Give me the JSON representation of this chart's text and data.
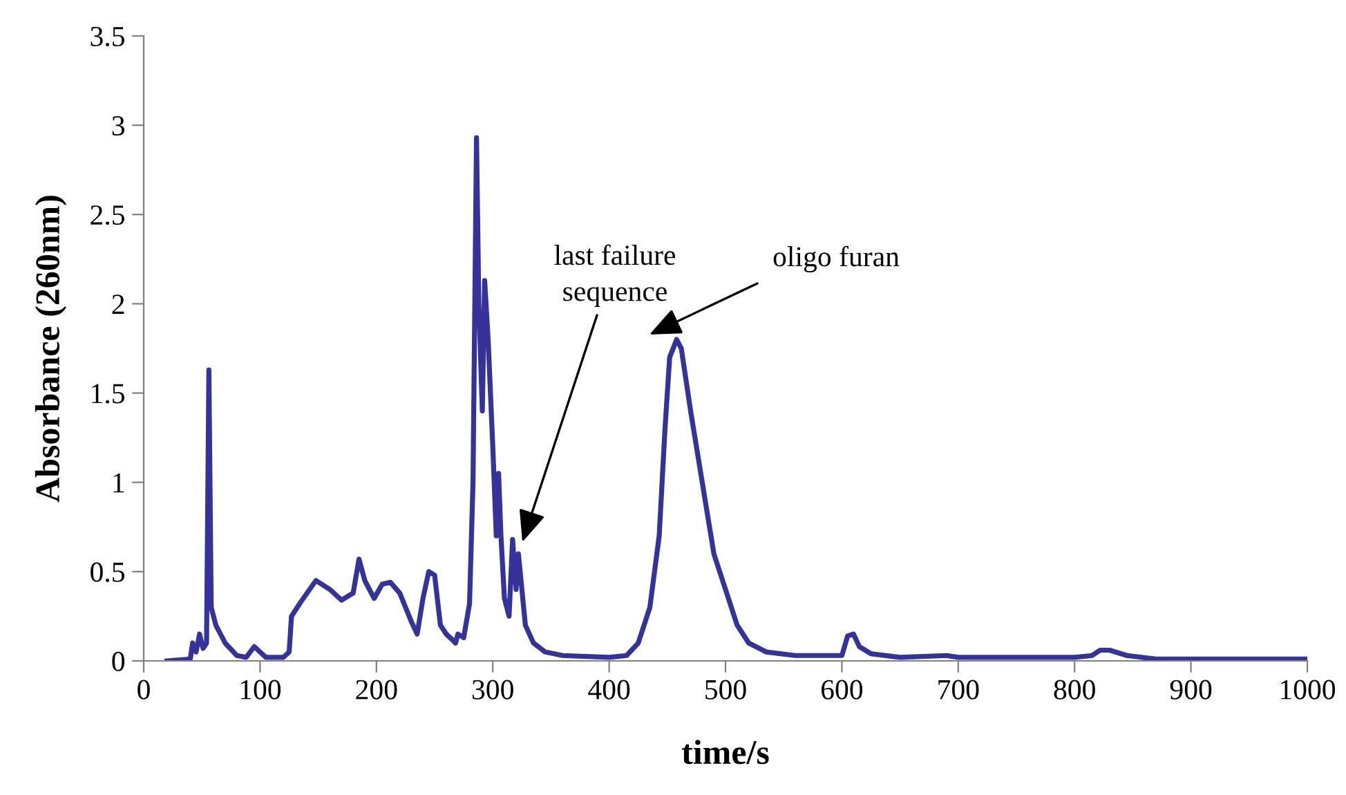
{
  "chart_data": {
    "type": "line",
    "xlabel": "time/s",
    "ylabel": "Absorbance (260nm)",
    "xlim": [
      0,
      1000
    ],
    "ylim": [
      0,
      3.5
    ],
    "xticks": [
      0,
      100,
      200,
      300,
      400,
      500,
      600,
      700,
      800,
      900,
      1000
    ],
    "yticks": [
      0,
      0.5,
      1,
      1.5,
      2,
      2.5,
      3,
      3.5
    ],
    "grid": false,
    "legend": false,
    "marker": "none",
    "line_style": "solid",
    "series": [
      {
        "color": "#333399",
        "x": [
          20,
          40,
          42,
          45,
          48,
          51,
          54,
          56,
          58,
          62,
          70,
          80,
          88,
          95,
          100,
          105,
          120,
          125,
          127,
          135,
          148,
          160,
          170,
          180,
          185,
          190,
          198,
          205,
          212,
          220,
          230,
          235,
          240,
          245,
          250,
          255,
          260,
          265,
          268,
          270,
          275,
          280,
          283,
          286,
          288,
          291,
          293,
          296,
          300,
          303,
          305,
          307,
          310,
          314,
          317,
          320,
          322,
          325,
          328,
          335,
          345,
          360,
          400,
          415,
          425,
          435,
          443,
          448,
          452,
          458,
          462,
          470,
          480,
          490,
          500,
          510,
          520,
          535,
          560,
          600,
          605,
          610,
          615,
          625,
          650,
          690,
          700,
          800,
          815,
          822,
          830,
          845,
          870,
          1000
        ],
        "values": [
          0.0,
          0.01,
          0.1,
          0.05,
          0.15,
          0.07,
          0.1,
          1.63,
          0.3,
          0.2,
          0.1,
          0.03,
          0.02,
          0.08,
          0.05,
          0.02,
          0.02,
          0.05,
          0.25,
          0.33,
          0.45,
          0.4,
          0.34,
          0.38,
          0.57,
          0.45,
          0.35,
          0.43,
          0.44,
          0.38,
          0.22,
          0.15,
          0.35,
          0.5,
          0.48,
          0.2,
          0.15,
          0.12,
          0.1,
          0.15,
          0.13,
          0.32,
          1.0,
          2.93,
          2.0,
          1.4,
          2.13,
          1.8,
          1.2,
          0.7,
          1.05,
          0.7,
          0.35,
          0.25,
          0.68,
          0.4,
          0.6,
          0.4,
          0.2,
          0.1,
          0.05,
          0.03,
          0.02,
          0.03,
          0.1,
          0.3,
          0.7,
          1.3,
          1.7,
          1.8,
          1.75,
          1.4,
          1.0,
          0.6,
          0.4,
          0.2,
          0.1,
          0.05,
          0.03,
          0.03,
          0.14,
          0.15,
          0.08,
          0.04,
          0.02,
          0.03,
          0.02,
          0.02,
          0.03,
          0.06,
          0.06,
          0.03,
          0.01,
          0.01
        ]
      }
    ],
    "annotations": [
      "last failure\nsequence",
      "oligo furan"
    ]
  }
}
